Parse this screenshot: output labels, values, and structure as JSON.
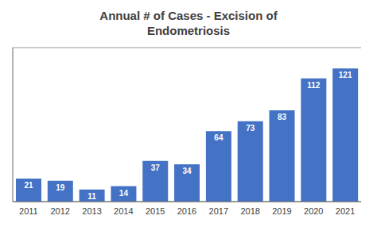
{
  "chart_data": {
    "type": "bar",
    "title": "Annual # of Cases - Excision of\nEndometriosis",
    "categories": [
      "2011",
      "2012",
      "2013",
      "2014",
      "2015",
      "2016",
      "2017",
      "2018",
      "2019",
      "2020",
      "2021"
    ],
    "values": [
      21,
      19,
      11,
      14,
      37,
      34,
      64,
      73,
      83,
      112,
      121
    ],
    "color": "#4472C4",
    "ylim": [
      0,
      140
    ],
    "yticks": [
      0,
      50,
      100
    ],
    "grid": true,
    "data_labels": true,
    "tick_labels": "x"
  }
}
